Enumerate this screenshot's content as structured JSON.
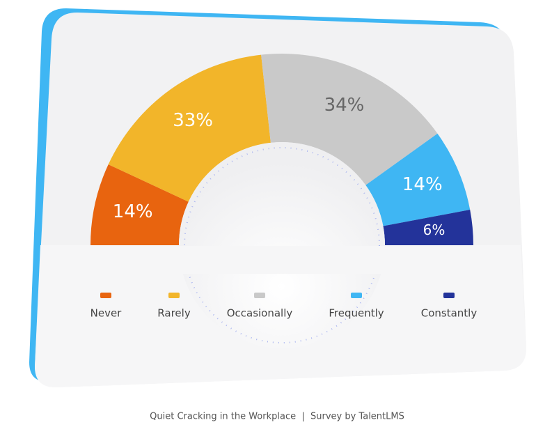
{
  "chart_data": {
    "type": "semidonut",
    "categories": [
      "Never",
      "Rarely",
      "Occasionally",
      "Frequently",
      "Constantly"
    ],
    "values": [
      14,
      33,
      34,
      14,
      6
    ],
    "value_labels": [
      "14%",
      "33%",
      "34%",
      "14%",
      "6%"
    ],
    "colors": [
      "#e8640f",
      "#f2b52a",
      "#c9c9c9",
      "#3fb6f3",
      "#23339a"
    ],
    "caption": "Quiet Cracking in the Workplace  |  Survey by TalentLMS"
  }
}
